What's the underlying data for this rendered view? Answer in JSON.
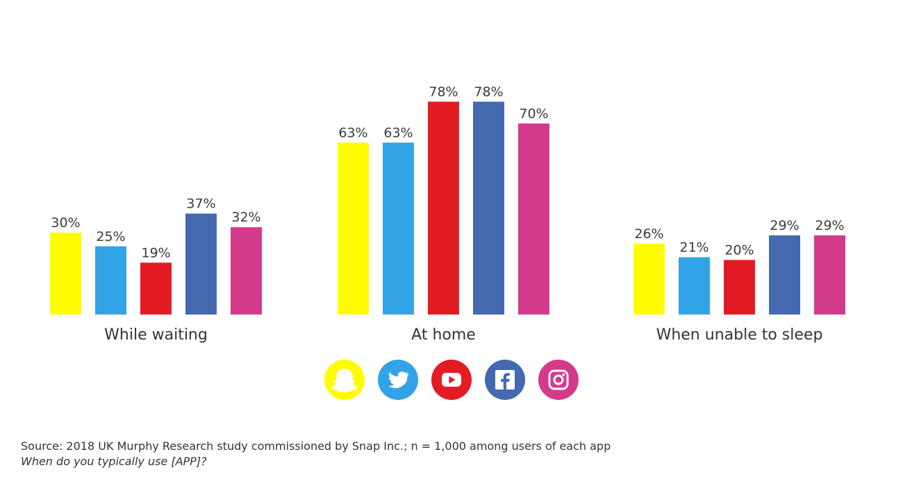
{
  "chart_data": {
    "type": "bar",
    "categories": [
      "While waiting",
      "At home",
      "When unable to sleep"
    ],
    "series": [
      {
        "icon": "snapchat-icon",
        "color": "#FFFC00",
        "values": [
          30,
          63,
          26
        ]
      },
      {
        "icon": "twitter-icon",
        "color": "#33A3E8",
        "values": [
          25,
          63,
          21
        ]
      },
      {
        "icon": "youtube-icon",
        "color": "#E31B23",
        "values": [
          19,
          78,
          20
        ]
      },
      {
        "icon": "facebook-icon",
        "color": "#4569AE",
        "values": [
          37,
          78,
          29
        ]
      },
      {
        "icon": "instagram-icon",
        "color": "#D33A8A",
        "values": [
          32,
          70,
          29
        ]
      }
    ],
    "value_suffix": "%",
    "ylim": [
      0,
      100
    ],
    "grid": false,
    "legend_placement": "bottom-center"
  },
  "footer": {
    "source": "Source: 2018 UK Murphy Research study commissioned by Snap Inc.; n = 1,000 among users of each app",
    "question": "When do you typically use [APP]?"
  }
}
